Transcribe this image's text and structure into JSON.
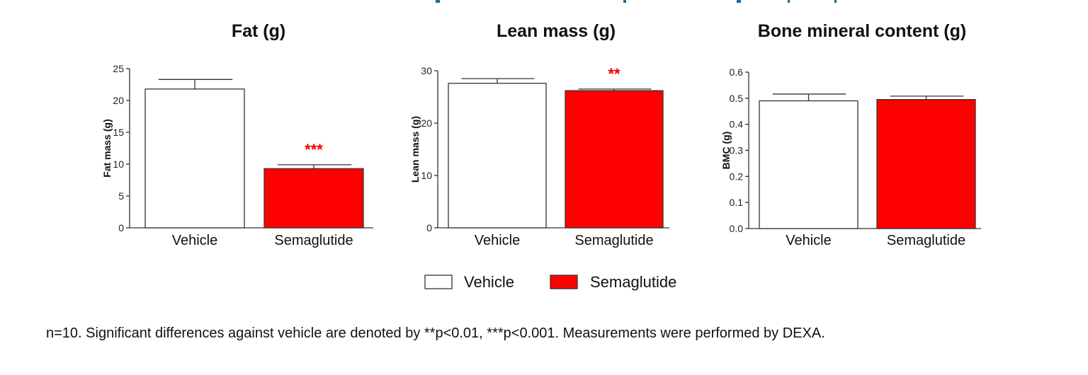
{
  "colors": {
    "vehicle": "#ffffff",
    "semaglutide": "#ff0000",
    "significance": "#e00000",
    "axis": "#333333"
  },
  "chart_data": [
    {
      "type": "bar",
      "title": "Fat (g)",
      "ylabel": "Fat mass (g)",
      "categories": [
        "Vehicle",
        "Semaglutide"
      ],
      "values": [
        21.8,
        9.3
      ],
      "error": [
        1.5,
        0.6
      ],
      "significance": [
        "",
        "***"
      ],
      "ylim": [
        0,
        25
      ],
      "yticks": [
        "0",
        "5",
        "10",
        "15",
        "20",
        "25"
      ],
      "ytick_values": [
        0,
        5,
        10,
        15,
        20,
        25
      ]
    },
    {
      "type": "bar",
      "title": "Lean mass (g)",
      "ylabel": "Lean mass (g)",
      "categories": [
        "Vehicle",
        "Semaglutide"
      ],
      "values": [
        27.6,
        26.2
      ],
      "error": [
        0.9,
        0.3
      ],
      "significance": [
        "",
        "**"
      ],
      "ylim": [
        0,
        30
      ],
      "yticks": [
        "0",
        "10",
        "20",
        "30"
      ],
      "ytick_values": [
        0,
        10,
        20,
        30
      ]
    },
    {
      "type": "bar",
      "title": "Bone mineral content (g)",
      "ylabel": "BMC (g)",
      "categories": [
        "Vehicle",
        "Semaglutide"
      ],
      "values": [
        0.49,
        0.495
      ],
      "error": [
        0.026,
        0.013
      ],
      "significance": [
        "",
        ""
      ],
      "ylim": [
        0,
        0.6
      ],
      "yticks": [
        "0.0",
        "0.1",
        "0.2",
        "0.3",
        "0.4",
        "0.5",
        "0.6"
      ],
      "ytick_values": [
        0,
        0.1,
        0.2,
        0.3,
        0.4,
        0.5,
        0.6
      ]
    }
  ],
  "legend": {
    "items": [
      "Vehicle",
      "Semaglutide"
    ],
    "placement": "bottom-center"
  },
  "footnote": "n=10. Significant differences against vehicle are denoted by **p<0.01, ***p<0.001. Measurements were performed by DEXA."
}
